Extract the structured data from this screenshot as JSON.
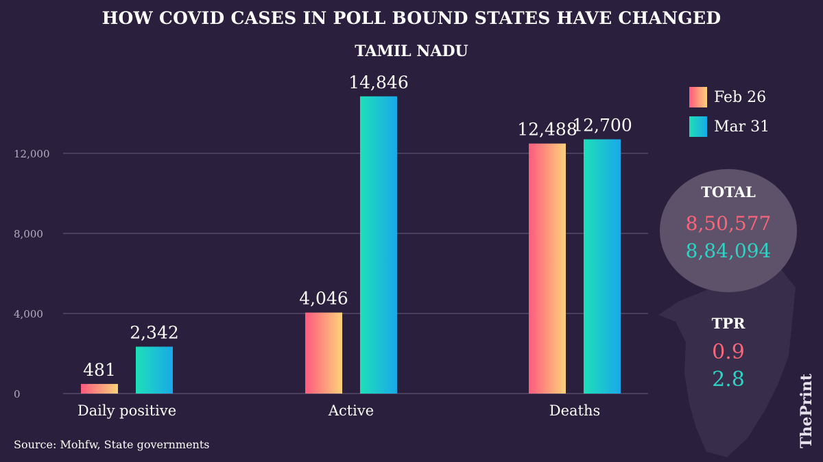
{
  "title": "HOW COVID CASES IN POLL BOUND STATES HAVE CHANGED",
  "subtitle": "TAMIL NADU",
  "legend": [
    {
      "label": "Feb 26",
      "color_from": "#ff5a7e",
      "color_to": "#ffd27a"
    },
    {
      "label": "Mar 31",
      "color_from": "#1ee0b8",
      "color_to": "#1aa8e8"
    }
  ],
  "total": {
    "label": "TOTAL",
    "feb": "8,50,577",
    "mar": "8,84,094"
  },
  "tpr": {
    "label": "TPR",
    "feb": "0.9",
    "mar": "2.8"
  },
  "source": "Source: Mohfw,  State governments",
  "brand": "ThePrint",
  "chart_data": {
    "type": "bar",
    "categories": [
      "Daily positive",
      "Active",
      "Deaths"
    ],
    "series": [
      {
        "name": "Feb 26",
        "values": [
          481,
          4046,
          12488
        ],
        "labels": [
          "481",
          "4,046",
          "12,488"
        ]
      },
      {
        "name": "Mar 31",
        "values": [
          2342,
          14846,
          12700
        ],
        "labels": [
          "2,342",
          "14,846",
          "12,700"
        ]
      }
    ],
    "yticks": [
      0,
      4000,
      8000,
      12000
    ],
    "ytick_labels": [
      "0",
      "4,000",
      "8,000",
      "12,000"
    ],
    "ylim": [
      0,
      15000
    ],
    "grid": true,
    "legend_position": "top-right"
  }
}
